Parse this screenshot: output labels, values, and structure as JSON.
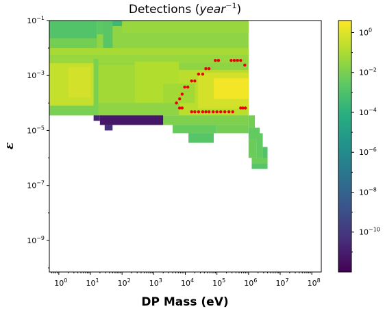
{
  "chart_data": {
    "type": "heatmap",
    "title": "Detections (year⁻¹)",
    "title_main": "Detections (",
    "title_var": "year",
    "title_exp": "−1",
    "title_close": ")",
    "xlabel": "DP Mass (eV)",
    "ylabel": "ε",
    "x_scale": "log",
    "y_scale": "log",
    "xlim_log10": [
      -0.3,
      8.3
    ],
    "ylim_log10": [
      -10.15,
      -1.0
    ],
    "colormap": "viridis",
    "color_scale": "log",
    "color_log10_range": [
      -12,
      0.6
    ],
    "x_ticks": [
      {
        "base": "10",
        "exp": "0"
      },
      {
        "base": "10",
        "exp": "1"
      },
      {
        "base": "10",
        "exp": "2"
      },
      {
        "base": "10",
        "exp": "3"
      },
      {
        "base": "10",
        "exp": "4"
      },
      {
        "base": "10",
        "exp": "5"
      },
      {
        "base": "10",
        "exp": "6"
      },
      {
        "base": "10",
        "exp": "7"
      },
      {
        "base": "10",
        "exp": "8"
      }
    ],
    "y_ticks": [
      {
        "base": "10",
        "exp": "−1"
      },
      {
        "base": "10",
        "exp": "−3"
      },
      {
        "base": "10",
        "exp": "−5"
      },
      {
        "base": "10",
        "exp": "−7"
      },
      {
        "base": "10",
        "exp": "−9"
      }
    ],
    "colorbar_ticks": [
      {
        "base": "10",
        "exp": "0"
      },
      {
        "base": "10",
        "exp": "−2"
      },
      {
        "base": "10",
        "exp": "−4"
      },
      {
        "base": "10",
        "exp": "−6"
      },
      {
        "base": "10",
        "exp": "−8"
      },
      {
        "base": "10",
        "exp": "−10"
      }
    ],
    "regions": [
      {
        "x": [
          -0.3,
          6.0
        ],
        "y": [
          -4.45,
          -1.0
        ],
        "c": -1.6
      },
      {
        "x": [
          -0.3,
          1.2
        ],
        "y": [
          -1.65,
          -1.0
        ],
        "c": -2.9
      },
      {
        "x": [
          1.2,
          1.55
        ],
        "y": [
          -1.5,
          -1.0
        ],
        "c": -2.6
      },
      {
        "x": [
          1.65,
          2.0
        ],
        "y": [
          -1.2,
          -1.0
        ],
        "c": -3.5
      },
      {
        "x": [
          1.4,
          1.7
        ],
        "y": [
          -2.0,
          -1.0
        ],
        "c": -2.7
      },
      {
        "x": [
          2.0,
          6.0
        ],
        "y": [
          -1.45,
          -1.0
        ],
        "c": -1.4
      },
      {
        "x": [
          -0.3,
          1.2
        ],
        "y": [
          -2.3,
          -1.65
        ],
        "c": -2.1
      },
      {
        "x": [
          -0.3,
          6.0
        ],
        "y": [
          -2.25,
          -2.0
        ],
        "c": -1.1
      },
      {
        "x": [
          -0.3,
          6.0
        ],
        "y": [
          -2.55,
          -2.25
        ],
        "c": -1.4
      },
      {
        "x": [
          -0.3,
          1.1
        ],
        "y": [
          -4.1,
          -2.55
        ],
        "c": -0.5
      },
      {
        "x": [
          0.3,
          1.0
        ],
        "y": [
          -3.8,
          -2.7
        ],
        "c": -0.2
      },
      {
        "x": [
          1.1,
          1.25
        ],
        "y": [
          -4.2,
          -2.4
        ],
        "c": -2.0
      },
      {
        "x": [
          1.25,
          2.4
        ],
        "y": [
          -4.0,
          -2.6
        ],
        "c": -1.2
      },
      {
        "x": [
          2.4,
          3.8
        ],
        "y": [
          -4.0,
          -2.5
        ],
        "c": -0.9
      },
      {
        "x": [
          -0.3,
          1.25
        ],
        "y": [
          -4.45,
          -4.1
        ],
        "c": -2.0
      },
      {
        "x": [
          1.25,
          3.3
        ],
        "y": [
          -4.45,
          -4.0
        ],
        "c": -1.6
      },
      {
        "x": [
          3.8,
          6.0
        ],
        "y": [
          -4.45,
          -2.8
        ],
        "c": -0.7
      },
      {
        "x": [
          4.4,
          6.0
        ],
        "y": [
          -4.2,
          -2.9
        ],
        "c": -0.2
      },
      {
        "x": [
          4.9,
          6.0
        ],
        "y": [
          -3.85,
          -3.1
        ],
        "c": 0.4
      },
      {
        "x": [
          3.3,
          4.3
        ],
        "y": [
          -4.0,
          -3.3
        ],
        "c": -1.2
      },
      {
        "x": [
          3.3,
          6.0
        ],
        "y": [
          -4.8,
          -4.45
        ],
        "c": -1.9
      },
      {
        "x": [
          3.6,
          5.0
        ],
        "y": [
          -5.1,
          -4.8
        ],
        "c": -2.4
      },
      {
        "x": [
          4.1,
          4.9
        ],
        "y": [
          -5.45,
          -5.1
        ],
        "c": -2.8
      },
      {
        "x": [
          5.0,
          6.0
        ],
        "y": [
          -5.1,
          -4.8
        ],
        "c": -2.1
      },
      {
        "x": [
          6.0,
          6.2
        ],
        "y": [
          -4.9,
          -4.45
        ],
        "c": -2.1
      },
      {
        "x": [
          1.1,
          1.3
        ],
        "y": [
          -4.65,
          -4.45
        ],
        "c": -10.8
      },
      {
        "x": [
          1.3,
          3.3
        ],
        "y": [
          -4.8,
          -4.45
        ],
        "c": -11.2
      },
      {
        "x": [
          1.45,
          1.7
        ],
        "y": [
          -5.0,
          -4.8
        ],
        "c": -10.4
      },
      {
        "x": [
          6.0,
          6.35
        ],
        "y": [
          -5.3,
          -4.9
        ],
        "c": -2.5
      },
      {
        "x": [
          6.0,
          6.25
        ],
        "y": [
          -6.0,
          -5.3
        ],
        "c": -2.3
      },
      {
        "x": [
          6.25,
          6.45
        ],
        "y": [
          -6.0,
          -5.1
        ],
        "c": -2.5
      },
      {
        "x": [
          6.45,
          6.6
        ],
        "y": [
          -6.2,
          -5.6
        ],
        "c": -2.9
      },
      {
        "x": [
          6.1,
          6.6
        ],
        "y": [
          -6.2,
          -6.0
        ],
        "c": -2.3
      },
      {
        "x": [
          6.1,
          6.6
        ],
        "y": [
          -6.4,
          -6.2
        ],
        "c": -2.8
      }
    ],
    "contour_points": [
      [
        5.88,
        -2.62
      ],
      [
        5.75,
        -2.45
      ],
      [
        5.65,
        -2.45
      ],
      [
        5.55,
        -2.45
      ],
      [
        5.45,
        -2.45
      ],
      [
        5.05,
        -2.45
      ],
      [
        4.95,
        -2.45
      ],
      [
        4.75,
        -2.75
      ],
      [
        4.65,
        -2.75
      ],
      [
        4.55,
        -2.95
      ],
      [
        4.42,
        -2.95
      ],
      [
        4.3,
        -3.2
      ],
      [
        4.2,
        -3.2
      ],
      [
        4.08,
        -3.42
      ],
      [
        3.98,
        -3.42
      ],
      [
        3.9,
        -3.68
      ],
      [
        3.82,
        -3.85
      ],
      [
        3.72,
        -4.0
      ],
      [
        3.82,
        -4.18
      ],
      [
        3.9,
        -4.18
      ],
      [
        4.2,
        -4.32
      ],
      [
        4.3,
        -4.32
      ],
      [
        4.42,
        -4.32
      ],
      [
        4.55,
        -4.32
      ],
      [
        4.65,
        -4.32
      ],
      [
        4.75,
        -4.32
      ],
      [
        4.88,
        -4.32
      ],
      [
        5.0,
        -4.32
      ],
      [
        5.12,
        -4.32
      ],
      [
        5.25,
        -4.32
      ],
      [
        5.38,
        -4.32
      ],
      [
        5.5,
        -4.32
      ],
      [
        5.75,
        -4.18
      ],
      [
        5.82,
        -4.18
      ],
      [
        5.9,
        -4.18
      ]
    ]
  }
}
